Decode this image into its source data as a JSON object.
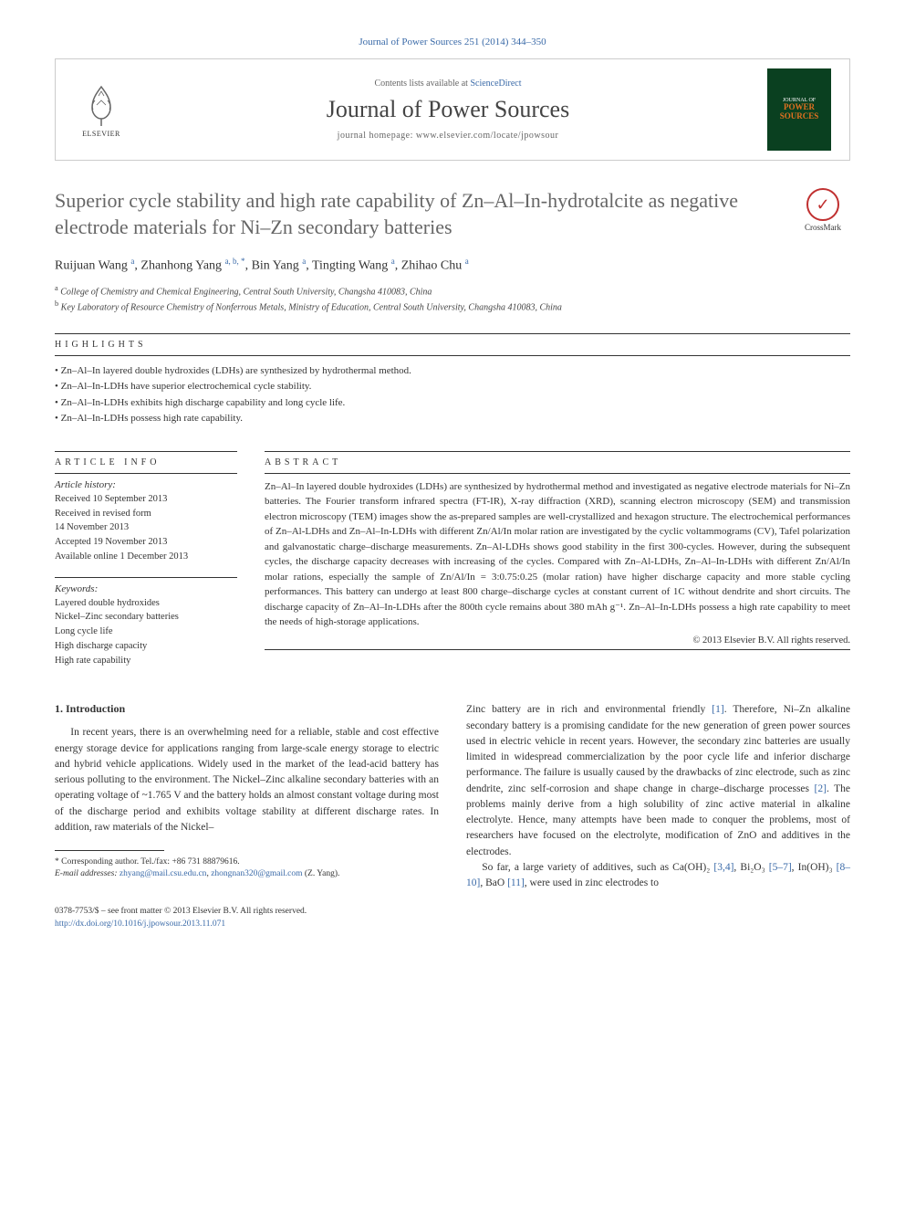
{
  "citation": "Journal of Power Sources 251 (2014) 344–350",
  "header": {
    "contents_prefix": "Contents lists available at ",
    "contents_link": "ScienceDirect",
    "journal_title": "Journal of Power Sources",
    "homepage_prefix": "journal homepage: ",
    "homepage_url": "www.elsevier.com/locate/jpowsour",
    "publisher": "ELSEVIER",
    "cover_label_top": "JOURNAL OF",
    "cover_label_main": "POWER SOURCES"
  },
  "article": {
    "title": "Superior cycle stability and high rate capability of Zn–Al–In-hydrotalcite as negative electrode materials for Ni–Zn secondary batteries",
    "crossmark": "CrossMark"
  },
  "authors_html": "Ruijuan Wang <sup>a</sup>, Zhanhong Yang <sup>a, b, *</sup>, Bin Yang <sup>a</sup>, Tingting Wang <sup>a</sup>, Zhihao Chu <sup>a</sup>",
  "affiliations": {
    "a": "College of Chemistry and Chemical Engineering, Central South University, Changsha 410083, China",
    "b": "Key Laboratory of Resource Chemistry of Nonferrous Metals, Ministry of Education, Central South University, Changsha 410083, China"
  },
  "highlights": {
    "label": "HIGHLIGHTS",
    "items": [
      "Zn–Al–In layered double hydroxides (LDHs) are synthesized by hydrothermal method.",
      "Zn–Al–In-LDHs have superior electrochemical cycle stability.",
      "Zn–Al–In-LDHs exhibits high discharge capability and long cycle life.",
      "Zn–Al–In-LDHs possess high rate capability."
    ]
  },
  "article_info": {
    "label": "ARTICLE INFO",
    "history_label": "Article history:",
    "history": [
      "Received 10 September 2013",
      "Received in revised form",
      "14 November 2013",
      "Accepted 19 November 2013",
      "Available online 1 December 2013"
    ],
    "keywords_label": "Keywords:",
    "keywords": [
      "Layered double hydroxides",
      "Nickel–Zinc secondary batteries",
      "Long cycle life",
      "High discharge capacity",
      "High rate capability"
    ]
  },
  "abstract": {
    "label": "ABSTRACT",
    "text": "Zn–Al–In layered double hydroxides (LDHs) are synthesized by hydrothermal method and investigated as negative electrode materials for Ni–Zn batteries. The Fourier transform infrared spectra (FT-IR), X-ray diffraction (XRD), scanning electron microscopy (SEM) and transmission electron microscopy (TEM) images show the as-prepared samples are well-crystallized and hexagon structure. The electrochemical performances of Zn–Al-LDHs and Zn–Al–In-LDHs with different Zn/Al/In molar ration are investigated by the cyclic voltammograms (CV), Tafel polarization and galvanostatic charge–discharge measurements. Zn–Al-LDHs shows good stability in the first 300-cycles. However, during the subsequent cycles, the discharge capacity decreases with increasing of the cycles. Compared with Zn–Al-LDHs, Zn–Al–In-LDHs with different Zn/Al/In molar rations, especially the sample of Zn/Al/In = 3:0.75:0.25 (molar ration) have higher discharge capacity and more stable cycling performances. This battery can undergo at least 800 charge–discharge cycles at constant current of 1C without dendrite and short circuits. The discharge capacity of Zn–Al–In-LDHs after the 800th cycle remains about 380 mAh g⁻¹. Zn–Al–In-LDHs possess a high rate capability to meet the needs of high-storage applications.",
    "copyright": "© 2013 Elsevier B.V. All rights reserved."
  },
  "body": {
    "heading": "1. Introduction",
    "para1": "In recent years, there is an overwhelming need for a reliable, stable and cost effective energy storage device for applications ranging from large-scale energy storage to electric and hybrid vehicle applications. Widely used in the market of the lead-acid battery has serious polluting to the environment. The Nickel–Zinc alkaline secondary batteries with an operating voltage of ~1.765 V and the battery holds an almost constant voltage during most of the discharge period and exhibits voltage stability at different discharge rates. In addition, raw materials of the Nickel–",
    "para2_pre": "Zinc battery are in rich and environmental friendly ",
    "ref1": "[1]",
    "para2_mid": ". Therefore, Ni–Zn alkaline secondary battery is a promising candidate for the new generation of green power sources used in electric vehicle in recent years. However, the secondary zinc batteries are usually limited in widespread commercialization by the poor cycle life and inferior discharge performance. The failure is usually caused by the drawbacks of zinc electrode, such as zinc dendrite, zinc self-corrosion and shape change in charge–discharge processes ",
    "ref2": "[2]",
    "para2_end": ". The problems mainly derive from a high solubility of zinc active material in alkaline electrolyte. Hence, many attempts have been made to conquer the problems, most of researchers have focused on the electrolyte, modification of ZnO and additives in the electrodes.",
    "para3_pre": "So far, a large variety of additives, such as Ca(OH)₂ ",
    "ref34": "[3,4]",
    "para3_a": ", Bi₂O₃ ",
    "ref57": "[5–7]",
    "para3_b": ", In(OH)₃ ",
    "ref810": "[8–10]",
    "para3_c": ", BaO ",
    "ref11": "[11]",
    "para3_end": ", were used in zinc electrodes to"
  },
  "footnotes": {
    "corr_label": "* Corresponding author. Tel./fax: +86 731 88879616.",
    "email_label": "E-mail addresses:",
    "email1": "zhyang@mail.csu.edu.cn",
    "email_sep": ", ",
    "email2": "zhongnan320@gmail.com",
    "email_suffix": " (Z. Yang)."
  },
  "footer": {
    "issn_line": "0378-7753/$ – see front matter © 2013 Elsevier B.V. All rights reserved.",
    "doi": "http://dx.doi.org/10.1016/j.jpowsour.2013.11.071"
  },
  "colors": {
    "link": "#3a6aa8",
    "title_gray": "#666666",
    "cover_bg": "#0a4020",
    "cover_orange": "#e07020",
    "crossmark_red": "#c03030"
  }
}
